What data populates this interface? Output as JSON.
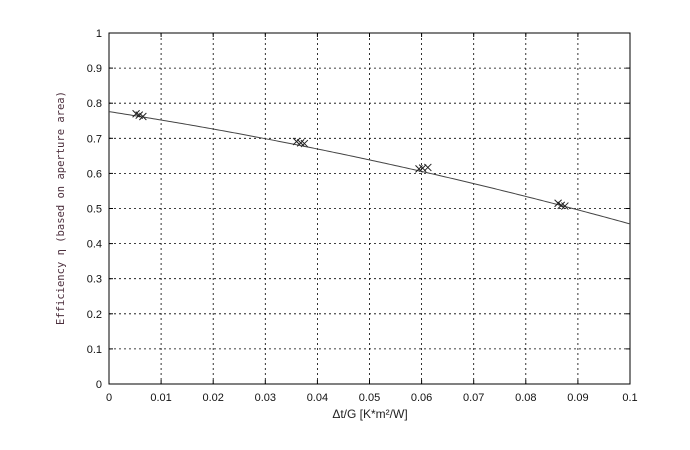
{
  "chart_data": {
    "type": "scatter",
    "xlabel": "Δt/G [K*m²/W]",
    "ylabel": "Efficiency η (based on aperture area)",
    "xlim": [
      0,
      0.1
    ],
    "ylim": [
      0,
      1
    ],
    "x_ticks": [
      "0",
      "0.01",
      "0.02",
      "0.03",
      "0.04",
      "0.05",
      "0.06",
      "0.07",
      "0.08",
      "0.09",
      "0.1"
    ],
    "y_ticks": [
      "0",
      "0.1",
      "0.2",
      "0.3",
      "0.4",
      "0.5",
      "0.6",
      "0.7",
      "0.8",
      "0.9",
      "1"
    ],
    "grid": "dashed",
    "series": [
      {
        "type": "scatter",
        "marker": "x",
        "points": [
          {
            "x": 0.0052,
            "y": 0.77
          },
          {
            "x": 0.0058,
            "y": 0.766
          },
          {
            "x": 0.0065,
            "y": 0.762
          },
          {
            "x": 0.036,
            "y": 0.691
          },
          {
            "x": 0.0368,
            "y": 0.687
          },
          {
            "x": 0.0375,
            "y": 0.685
          },
          {
            "x": 0.0595,
            "y": 0.613
          },
          {
            "x": 0.0602,
            "y": 0.615
          },
          {
            "x": 0.0612,
            "y": 0.617
          },
          {
            "x": 0.0862,
            "y": 0.515
          },
          {
            "x": 0.0868,
            "y": 0.509
          },
          {
            "x": 0.0875,
            "y": 0.507
          }
        ]
      },
      {
        "type": "line",
        "curve": {
          "eta0": 0.776,
          "a1": 2.3,
          "a2": 9.0
        }
      }
    ],
    "colors": {
      "axis": "#000000",
      "grid": "#000000",
      "curve": "#444444",
      "marker": "#222222"
    }
  }
}
